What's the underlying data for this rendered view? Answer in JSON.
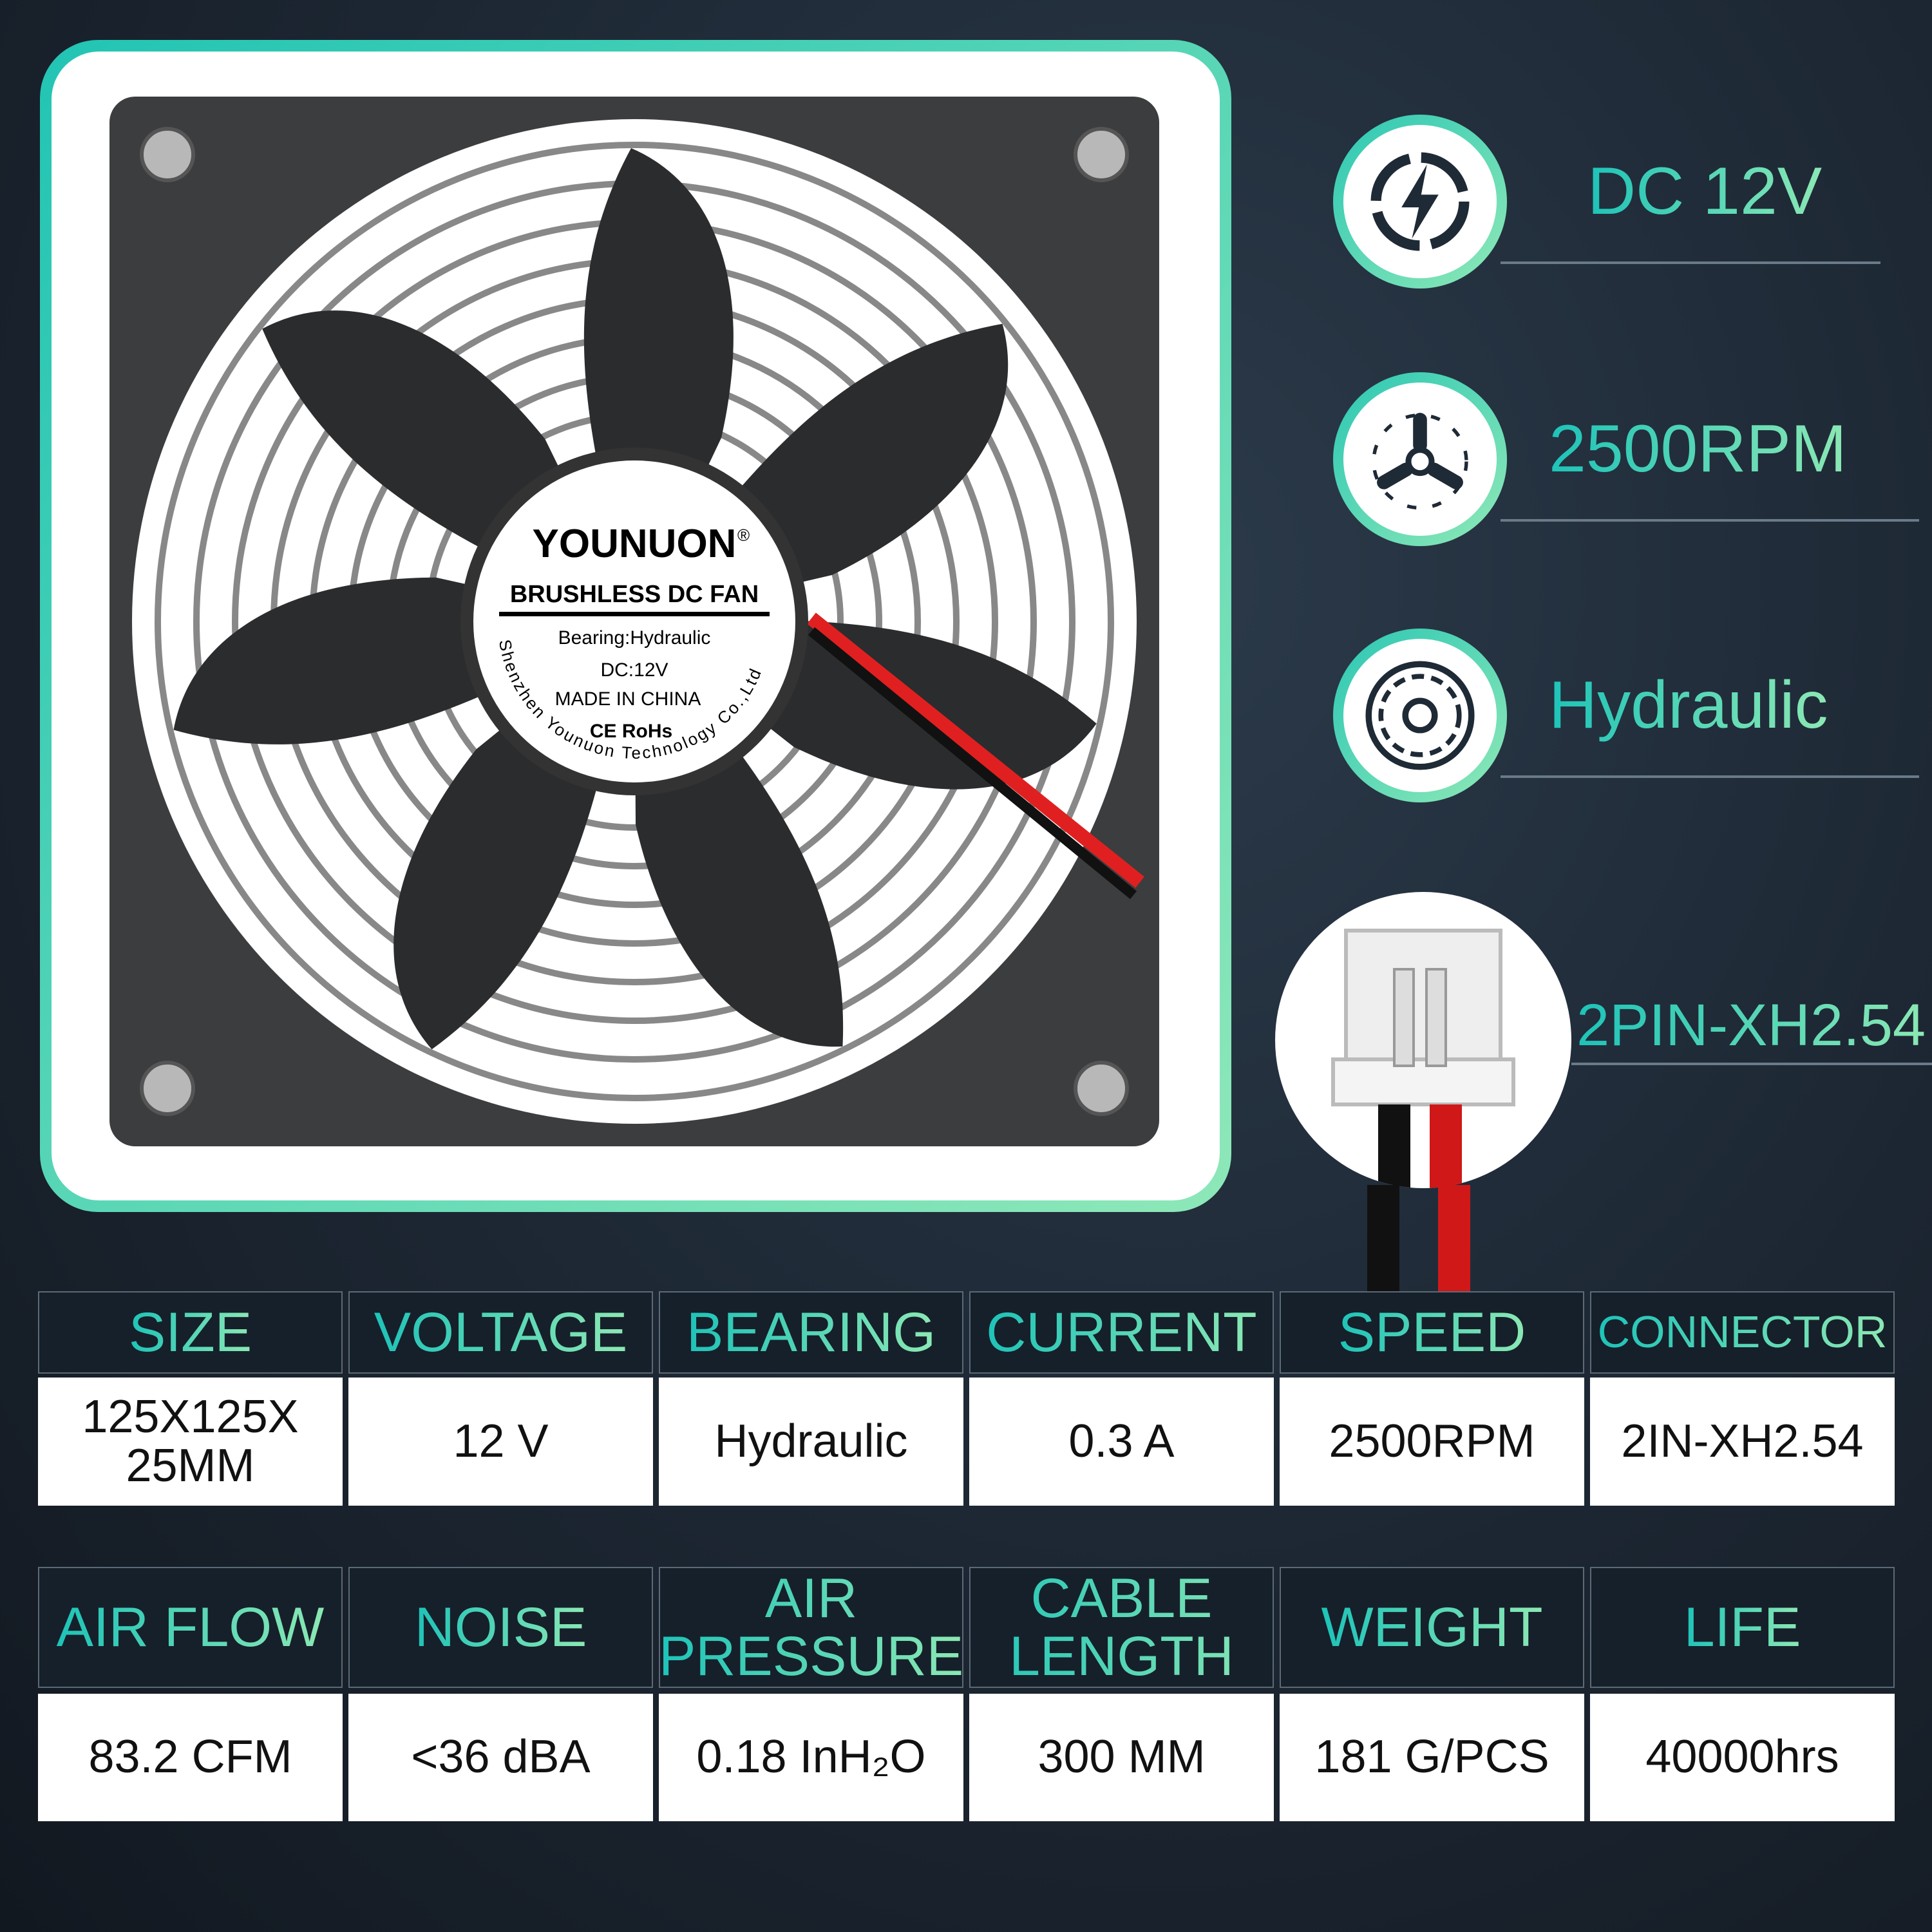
{
  "fan_label": {
    "brand": "YOUNUON",
    "registered": "®",
    "title": "BRUSHLESS DC FAN",
    "bearing": "Bearing:Hydraulic",
    "voltage": "DC:12V",
    "origin": "MADE IN CHINA",
    "certs": "CE RoHs",
    "maker": "Shenzhen Younuon Technology Co.,Ltd"
  },
  "watermark": "YOUNUON",
  "specs": [
    {
      "icon": "lightning-power-icon",
      "label": "DC 12V"
    },
    {
      "icon": "propeller-icon",
      "label": "2500RPM"
    },
    {
      "icon": "bearing-icon",
      "label": "Hydraulic"
    },
    {
      "icon": "connector-plug-icon",
      "label": "2PIN-XH2.54"
    }
  ],
  "table1": {
    "headers": [
      "SIZE",
      "VOLTAGE",
      "BEARING",
      "CURRENT",
      "SPEED",
      "CONNECTOR"
    ],
    "values": [
      "125X125X 25MM",
      "12 V",
      "Hydraulic",
      "0.3 A",
      "2500RPM",
      "2IN-XH2.54"
    ]
  },
  "table2": {
    "headers": [
      "AIR FLOW",
      "NOISE",
      "AIR PRESSURE",
      "CABLE LENGTH",
      "WEIGHT",
      "LIFE"
    ],
    "values": [
      "83.2 CFM",
      "<36 dBA",
      "0.18 InH₂O",
      "300 MM",
      "181 G/PCS",
      "40000hrs"
    ]
  },
  "colors": {
    "accent_start": "#1ec3b8",
    "accent_end": "#8be8b4",
    "background": "#1c2632",
    "wire_red": "#e02020"
  }
}
